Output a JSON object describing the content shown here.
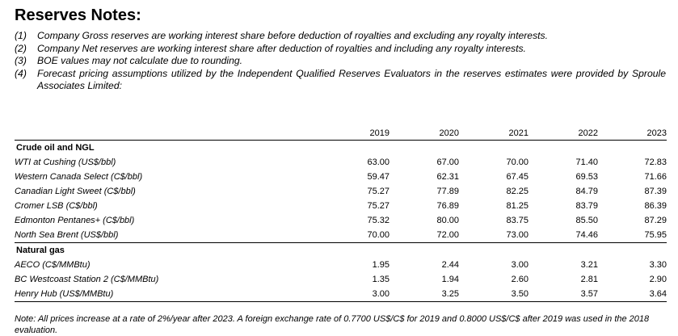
{
  "title": "Reserves Notes:",
  "notes": [
    {
      "num": "(1)",
      "text": "Company Gross reserves are working interest share before deduction of royalties and excluding any royalty interests."
    },
    {
      "num": "(2)",
      "text": "Company Net reserves are working interest share after deduction of royalties and including any royalty interests."
    },
    {
      "num": "(3)",
      "text": "BOE values may not calculate due to rounding."
    },
    {
      "num": "(4)",
      "text": "Forecast pricing assumptions utilized by the Independent Qualified Reserves Evaluators in the reserves estimates were provided by Sproule Associates Limited:"
    }
  ],
  "table": {
    "years": [
      "2019",
      "2020",
      "2021",
      "2022",
      "2023"
    ],
    "sections": [
      {
        "name": "Crude oil and NGL",
        "rows": [
          {
            "label": "WTI at Cushing (US$/bbl)",
            "values": [
              "63.00",
              "67.00",
              "70.00",
              "71.40",
              "72.83"
            ]
          },
          {
            "label": "Western Canada Select (C$/bbl)",
            "values": [
              "59.47",
              "62.31",
              "67.45",
              "69.53",
              "71.66"
            ]
          },
          {
            "label": "Canadian Light Sweet (C$/bbl)",
            "values": [
              "75.27",
              "77.89",
              "82.25",
              "84.79",
              "87.39"
            ]
          },
          {
            "label": "Cromer LSB (C$/bbl)",
            "values": [
              "75.27",
              "76.89",
              "81.25",
              "83.79",
              "86.39"
            ]
          },
          {
            "label": "Edmonton Pentanes+ (C$/bbl)",
            "values": [
              "75.32",
              "80.00",
              "83.75",
              "85.50",
              "87.29"
            ]
          },
          {
            "label": "North Sea Brent (US$/bbl)",
            "values": [
              "70.00",
              "72.00",
              "73.00",
              "74.46",
              "75.95"
            ]
          }
        ]
      },
      {
        "name": "Natural gas",
        "rows": [
          {
            "label": "AECO (C$/MMBtu)",
            "values": [
              "1.95",
              "2.44",
              "3.00",
              "3.21",
              "3.30"
            ]
          },
          {
            "label": "BC Westcoast Station 2 (C$/MMBtu)",
            "values": [
              "1.35",
              "1.94",
              "2.60",
              "2.81",
              "2.90"
            ]
          },
          {
            "label": "Henry Hub (US$/MMBtu)",
            "values": [
              "3.00",
              "3.25",
              "3.50",
              "3.57",
              "3.64"
            ]
          }
        ]
      }
    ]
  },
  "footnote": "Note: All prices increase at a rate of 2%/year after 2023. A foreign exchange rate of 0.7700 US$/C$ for 2019 and 0.8000 US$/C$ after 2019 was used in the 2018 evaluation."
}
